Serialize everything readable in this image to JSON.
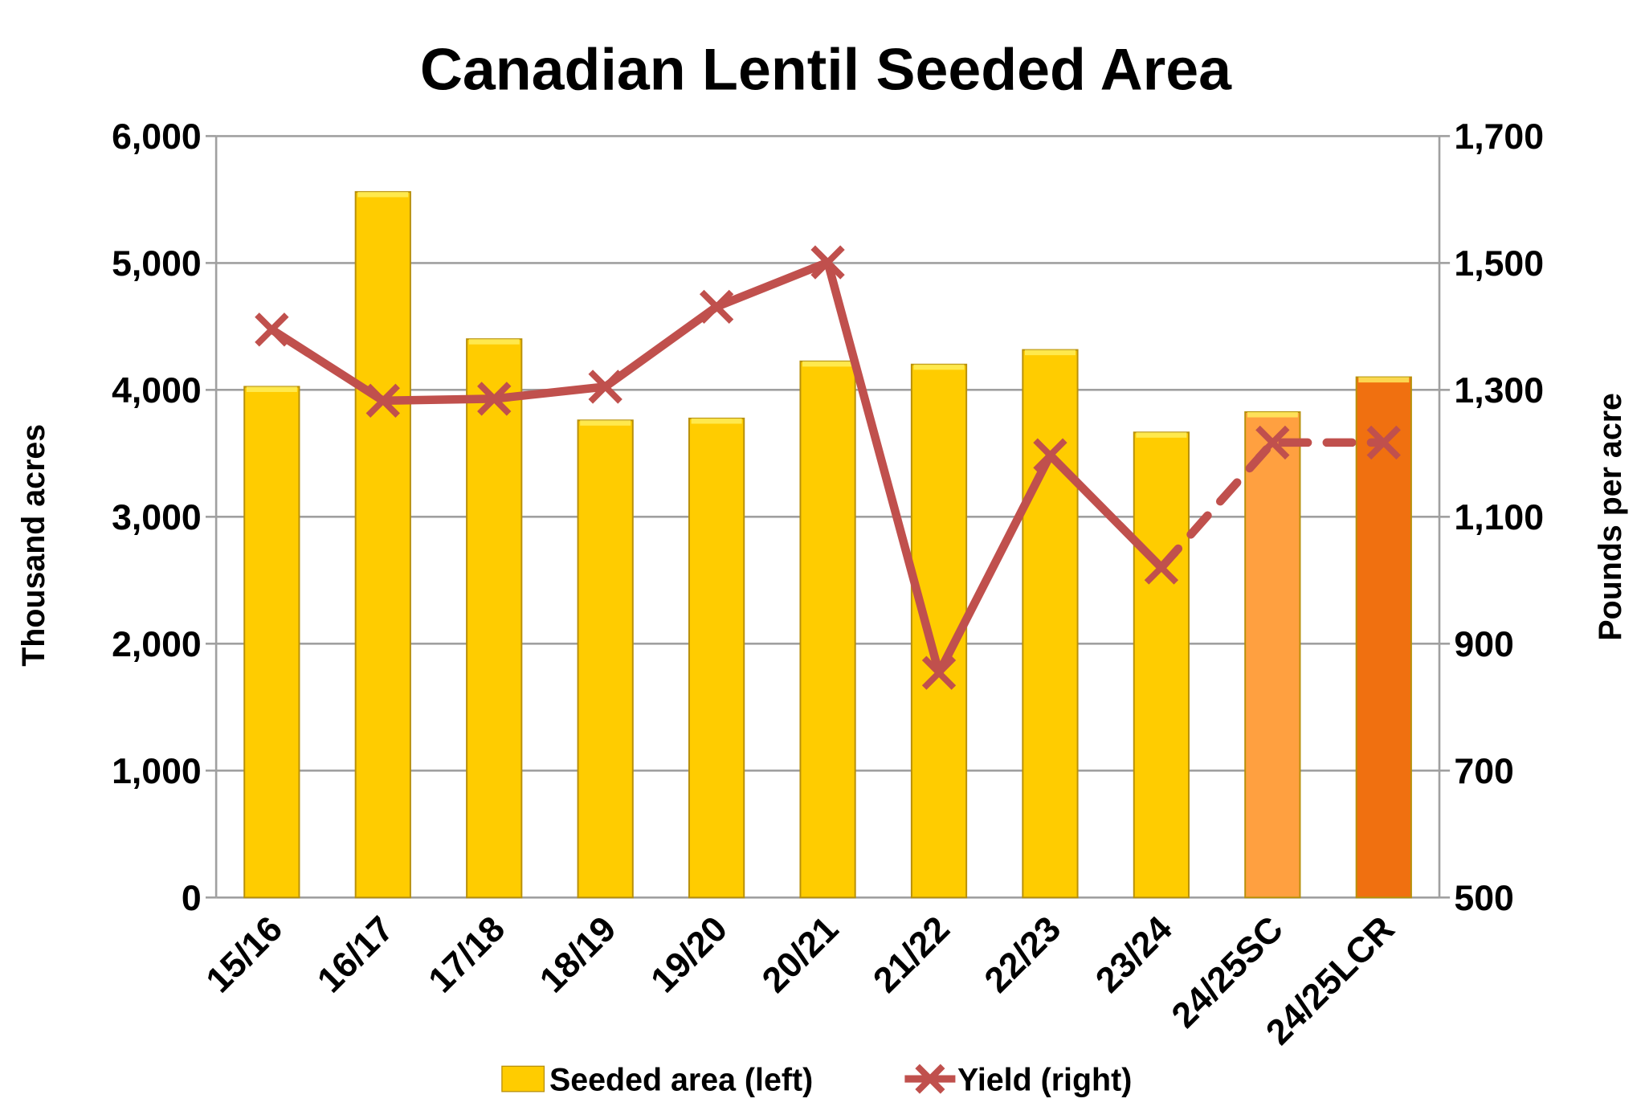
{
  "chart_data": {
    "type": "bar+line",
    "title": "Canadian Lentil Seeded Area",
    "ylabel": "Thousand acres",
    "y2label": "Pounds per acre",
    "categories": [
      "15/16",
      "16/17",
      "17/18",
      "18/19",
      "19/20",
      "20/21",
      "21/22",
      "22/23",
      "23/24",
      "24/25SC",
      "24/25LCR"
    ],
    "ylim": [
      0,
      6000
    ],
    "yticks": [
      "0",
      "1,000",
      "2,000",
      "3,000",
      "4,000",
      "5,000",
      "6,000"
    ],
    "y2lim": [
      500,
      1700
    ],
    "y2ticks": [
      "500",
      "700",
      "900",
      "1,100",
      "1,300",
      "1,500",
      "1,700"
    ],
    "grid": true,
    "legend_placement": "bottom",
    "series": [
      {
        "name": "Seeded area (left)",
        "type": "bar",
        "axis": "left",
        "values": [
          4025,
          5560,
          4400,
          3760,
          3775,
          4225,
          4200,
          4315,
          3665,
          3825,
          4100
        ],
        "colors": [
          "#FFCC00",
          "#FFCC00",
          "#FFCC00",
          "#FFCC00",
          "#FFCC00",
          "#FFCC00",
          "#FFCC00",
          "#FFCC00",
          "#FFCC00",
          "#FFA040",
          "#F07010"
        ]
      },
      {
        "name": "Yield (right)",
        "type": "line",
        "axis": "right",
        "marker": "x",
        "values": [
          1395,
          1283,
          1286,
          1305,
          1431,
          1501,
          854,
          1197,
          1020,
          1217,
          1217
        ],
        "dashed_from_index": 8,
        "color": "#C0504D"
      }
    ]
  }
}
